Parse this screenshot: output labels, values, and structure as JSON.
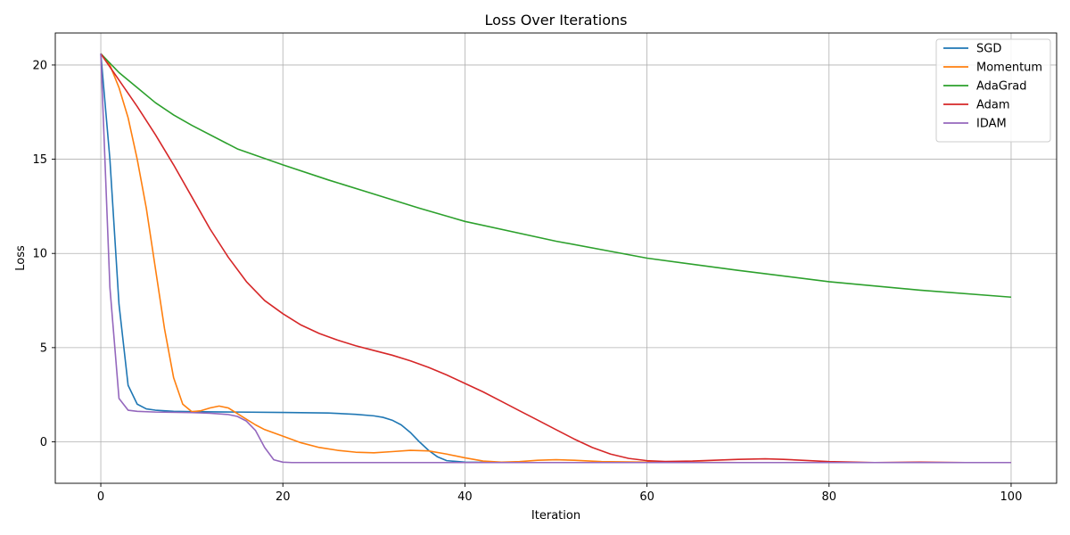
{
  "chart_data": {
    "type": "line",
    "title": "Loss Over Iterations",
    "xlabel": "Iteration",
    "ylabel": "Loss",
    "xlim": [
      -5,
      105
    ],
    "ylim": [
      -2.2,
      21.7
    ],
    "xticks": [
      0,
      20,
      40,
      60,
      80,
      100
    ],
    "yticks": [
      0,
      5,
      10,
      15,
      20
    ],
    "grid": true,
    "legend_position": "top-right",
    "series": [
      {
        "name": "SGD",
        "color": "#1f77b4",
        "points": [
          [
            0,
            20.6
          ],
          [
            1,
            15.0
          ],
          [
            2,
            7.3
          ],
          [
            3,
            3.0
          ],
          [
            4,
            2.0
          ],
          [
            5,
            1.75
          ],
          [
            6,
            1.68
          ],
          [
            8,
            1.62
          ],
          [
            10,
            1.6
          ],
          [
            15,
            1.58
          ],
          [
            20,
            1.56
          ],
          [
            25,
            1.53
          ],
          [
            28,
            1.46
          ],
          [
            30,
            1.38
          ],
          [
            31,
            1.3
          ],
          [
            32,
            1.15
          ],
          [
            33,
            0.9
          ],
          [
            34,
            0.5
          ],
          [
            35,
            0.0
          ],
          [
            36,
            -0.45
          ],
          [
            37,
            -0.8
          ],
          [
            38,
            -1.0
          ],
          [
            40,
            -1.08
          ],
          [
            45,
            -1.1
          ],
          [
            60,
            -1.1
          ],
          [
            80,
            -1.1
          ],
          [
            100,
            -1.1
          ]
        ]
      },
      {
        "name": "Momentum",
        "color": "#ff7f0e",
        "points": [
          [
            0,
            20.6
          ],
          [
            1,
            20.0
          ],
          [
            2,
            18.8
          ],
          [
            3,
            17.2
          ],
          [
            4,
            15.0
          ],
          [
            5,
            12.4
          ],
          [
            6,
            9.2
          ],
          [
            7,
            6.0
          ],
          [
            8,
            3.4
          ],
          [
            9,
            2.0
          ],
          [
            10,
            1.6
          ],
          [
            11,
            1.65
          ],
          [
            12,
            1.8
          ],
          [
            13,
            1.9
          ],
          [
            14,
            1.8
          ],
          [
            15,
            1.5
          ],
          [
            16,
            1.2
          ],
          [
            17,
            0.9
          ],
          [
            18,
            0.65
          ],
          [
            20,
            0.3
          ],
          [
            22,
            -0.05
          ],
          [
            24,
            -0.3
          ],
          [
            26,
            -0.45
          ],
          [
            28,
            -0.55
          ],
          [
            30,
            -0.58
          ],
          [
            32,
            -0.52
          ],
          [
            34,
            -0.45
          ],
          [
            36,
            -0.48
          ],
          [
            38,
            -0.65
          ],
          [
            40,
            -0.85
          ],
          [
            42,
            -1.02
          ],
          [
            44,
            -1.08
          ],
          [
            46,
            -1.05
          ],
          [
            48,
            -0.98
          ],
          [
            50,
            -0.95
          ],
          [
            52,
            -0.98
          ],
          [
            55,
            -1.05
          ],
          [
            60,
            -1.08
          ],
          [
            70,
            -1.1
          ],
          [
            80,
            -1.1
          ],
          [
            90,
            -1.1
          ],
          [
            100,
            -1.1
          ]
        ]
      },
      {
        "name": "AdaGrad",
        "color": "#2ca02c",
        "points": [
          [
            0,
            20.6
          ],
          [
            2,
            19.6
          ],
          [
            4,
            18.8
          ],
          [
            6,
            18.0
          ],
          [
            8,
            17.35
          ],
          [
            10,
            16.8
          ],
          [
            15,
            15.55
          ],
          [
            20,
            14.7
          ],
          [
            25,
            13.9
          ],
          [
            30,
            13.15
          ],
          [
            35,
            12.4
          ],
          [
            40,
            11.7
          ],
          [
            50,
            10.65
          ],
          [
            60,
            9.75
          ],
          [
            70,
            9.1
          ],
          [
            80,
            8.5
          ],
          [
            90,
            8.05
          ],
          [
            100,
            7.68
          ]
        ]
      },
      {
        "name": "Adam",
        "color": "#d62728",
        "points": [
          [
            0,
            20.6
          ],
          [
            2,
            19.2
          ],
          [
            4,
            17.8
          ],
          [
            6,
            16.3
          ],
          [
            8,
            14.7
          ],
          [
            10,
            13.0
          ],
          [
            12,
            11.3
          ],
          [
            14,
            9.8
          ],
          [
            16,
            8.5
          ],
          [
            18,
            7.5
          ],
          [
            20,
            6.8
          ],
          [
            22,
            6.2
          ],
          [
            24,
            5.75
          ],
          [
            26,
            5.4
          ],
          [
            28,
            5.1
          ],
          [
            30,
            4.85
          ],
          [
            32,
            4.6
          ],
          [
            34,
            4.3
          ],
          [
            36,
            3.95
          ],
          [
            38,
            3.55
          ],
          [
            40,
            3.1
          ],
          [
            42,
            2.65
          ],
          [
            44,
            2.15
          ],
          [
            46,
            1.65
          ],
          [
            48,
            1.15
          ],
          [
            50,
            0.65
          ],
          [
            52,
            0.15
          ],
          [
            54,
            -0.3
          ],
          [
            56,
            -0.65
          ],
          [
            58,
            -0.88
          ],
          [
            60,
            -1.0
          ],
          [
            62,
            -1.04
          ],
          [
            65,
            -1.02
          ],
          [
            70,
            -0.93
          ],
          [
            73,
            -0.9
          ],
          [
            75,
            -0.93
          ],
          [
            78,
            -1.0
          ],
          [
            80,
            -1.05
          ],
          [
            85,
            -1.1
          ],
          [
            90,
            -1.08
          ],
          [
            95,
            -1.1
          ],
          [
            100,
            -1.1
          ]
        ]
      },
      {
        "name": "IDAM",
        "color": "#9467bd",
        "points": [
          [
            0,
            20.6
          ],
          [
            1,
            8.2
          ],
          [
            2,
            2.3
          ],
          [
            3,
            1.68
          ],
          [
            4,
            1.62
          ],
          [
            6,
            1.58
          ],
          [
            10,
            1.55
          ],
          [
            12,
            1.52
          ],
          [
            14,
            1.45
          ],
          [
            15,
            1.35
          ],
          [
            16,
            1.1
          ],
          [
            17,
            0.6
          ],
          [
            18,
            -0.3
          ],
          [
            19,
            -0.95
          ],
          [
            20,
            -1.08
          ],
          [
            21,
            -1.1
          ],
          [
            30,
            -1.1
          ],
          [
            50,
            -1.1
          ],
          [
            70,
            -1.1
          ],
          [
            100,
            -1.1
          ]
        ]
      }
    ]
  }
}
